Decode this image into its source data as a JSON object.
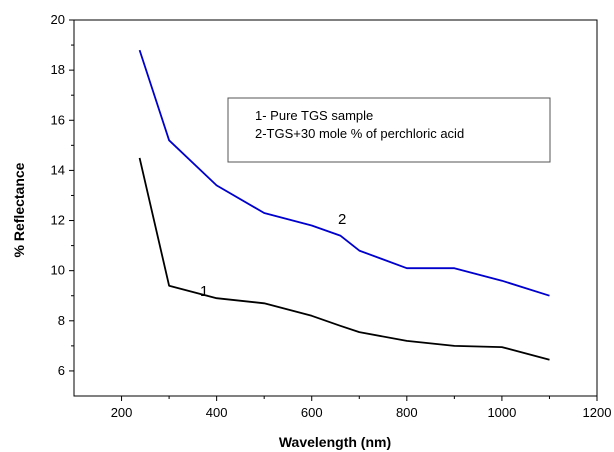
{
  "chart_data": {
    "type": "line",
    "xlabel": "Wavelength (nm)",
    "ylabel": "% Reflectance",
    "xlim": [
      100,
      1200
    ],
    "ylim": [
      5,
      20
    ],
    "xticks": [
      200,
      400,
      600,
      800,
      1000,
      1200
    ],
    "yticks": [
      6,
      8,
      10,
      12,
      14,
      16,
      18,
      20
    ],
    "grid": false,
    "legend": {
      "placement": "top-right",
      "entries": [
        "1- Pure TGS sample",
        "2-TGS+30 mole % of perchloric acid"
      ]
    },
    "series": [
      {
        "label": "1",
        "color": "#000000",
        "x": [
          238,
          300,
          400,
          500,
          600,
          660,
          700,
          800,
          900,
          1000,
          1100
        ],
        "y": [
          14.5,
          9.4,
          8.9,
          8.7,
          8.2,
          7.8,
          7.55,
          7.2,
          7.0,
          6.95,
          6.45
        ]
      },
      {
        "label": "2",
        "color": "#0000cc",
        "x": [
          238,
          300,
          400,
          500,
          600,
          660,
          700,
          800,
          900,
          1000,
          1100
        ],
        "y": [
          18.8,
          15.2,
          13.4,
          12.3,
          11.8,
          11.4,
          10.8,
          10.1,
          10.1,
          9.6,
          9.0
        ]
      }
    ]
  }
}
